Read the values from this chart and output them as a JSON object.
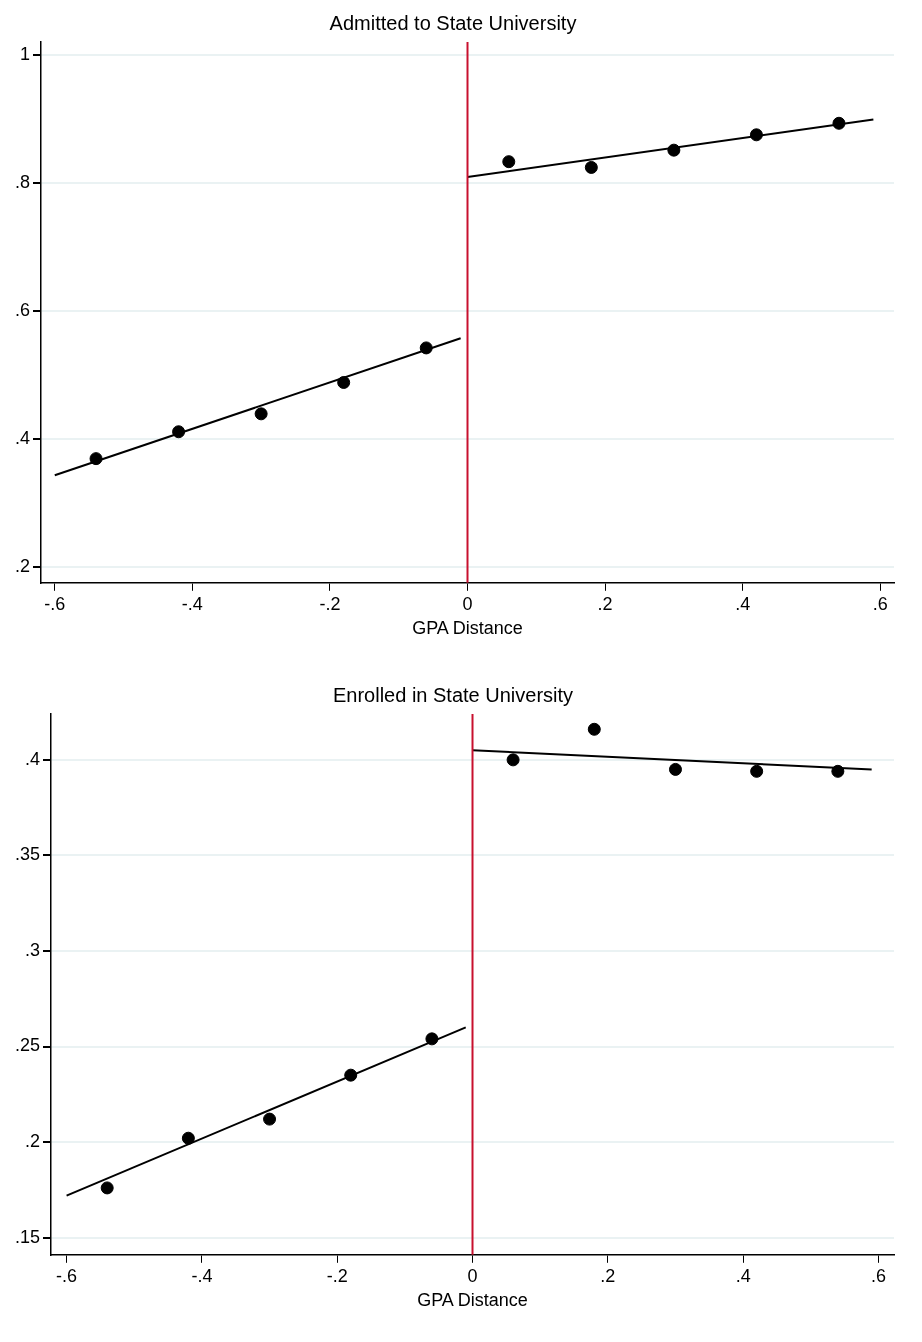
{
  "chart_data": [
    {
      "type": "scatter",
      "title": "Admitted to State University",
      "xlabel": "GPA Distance",
      "xlim": [
        -0.62,
        0.62
      ],
      "xticks": [
        {
          "value": -0.6,
          "label": "-.6"
        },
        {
          "value": -0.4,
          "label": "-.4"
        },
        {
          "value": -0.2,
          "label": "-.2"
        },
        0,
        {
          "value": 0.2,
          "label": ".2"
        },
        {
          "value": 0.4,
          "label": ".4"
        },
        {
          "value": 0.6,
          "label": ".6"
        }
      ],
      "ylim": [
        0.175,
        1.02
      ],
      "yticks": [
        {
          "value": 0.2,
          "label": ".2"
        },
        {
          "value": 0.4,
          "label": ".4"
        },
        {
          "value": 0.6,
          "label": ".6"
        },
        {
          "value": 0.8,
          "label": ".8"
        },
        1
      ],
      "grid": "y",
      "ref_lines": [
        {
          "axis": "x",
          "value": 0,
          "color": "#c8102e"
        }
      ],
      "series": [
        {
          "type": "scatter",
          "color": "#000000",
          "marker": "circle",
          "x": [
            -0.54,
            -0.42,
            -0.3,
            -0.18,
            -0.06,
            0.06,
            0.18,
            0.3,
            0.42,
            0.54
          ],
          "values": [
            0.369,
            0.411,
            0.439,
            0.488,
            0.542,
            0.833,
            0.824,
            0.851,
            0.875,
            0.893
          ]
        },
        {
          "type": "line",
          "color": "#000000",
          "x": [
            -0.6,
            -0.01
          ],
          "values": [
            0.343,
            0.557
          ]
        },
        {
          "type": "line",
          "color": "#000000",
          "x": [
            0,
            0.59
          ],
          "values": [
            0.809,
            0.899
          ]
        }
      ]
    },
    {
      "type": "scatter",
      "title": "Enrolled in State University",
      "xlabel": "GPA Distance",
      "xlim": [
        -0.623,
        0.623
      ],
      "xticks": [
        {
          "value": -0.6,
          "label": "-.6"
        },
        {
          "value": -0.4,
          "label": "-.4"
        },
        {
          "value": -0.2,
          "label": "-.2"
        },
        0,
        {
          "value": 0.2,
          "label": ".2"
        },
        {
          "value": 0.4,
          "label": ".4"
        },
        {
          "value": 0.6,
          "label": ".6"
        }
      ],
      "ylim": [
        0.141,
        0.424
      ],
      "yticks": [
        {
          "value": 0.15,
          "label": ".15"
        },
        {
          "value": 0.2,
          "label": ".2"
        },
        {
          "value": 0.25,
          "label": ".25"
        },
        {
          "value": 0.3,
          "label": ".3"
        },
        {
          "value": 0.35,
          "label": ".35"
        },
        {
          "value": 0.4,
          "label": ".4"
        }
      ],
      "grid": "y",
      "ref_lines": [
        {
          "axis": "x",
          "value": 0,
          "color": "#c8102e"
        }
      ],
      "series": [
        {
          "type": "scatter",
          "color": "#000000",
          "marker": "circle",
          "x": [
            -0.54,
            -0.42,
            -0.3,
            -0.18,
            -0.06,
            0.06,
            0.18,
            0.3,
            0.42,
            0.54
          ],
          "values": [
            0.176,
            0.202,
            0.212,
            0.235,
            0.254,
            0.4,
            0.416,
            0.395,
            0.394,
            0.394
          ]
        },
        {
          "type": "line",
          "color": "#000000",
          "x": [
            -0.6,
            -0.01
          ],
          "values": [
            0.172,
            0.26
          ]
        },
        {
          "type": "line",
          "color": "#000000",
          "x": [
            0,
            0.59
          ],
          "values": [
            0.405,
            0.395
          ]
        }
      ]
    }
  ]
}
